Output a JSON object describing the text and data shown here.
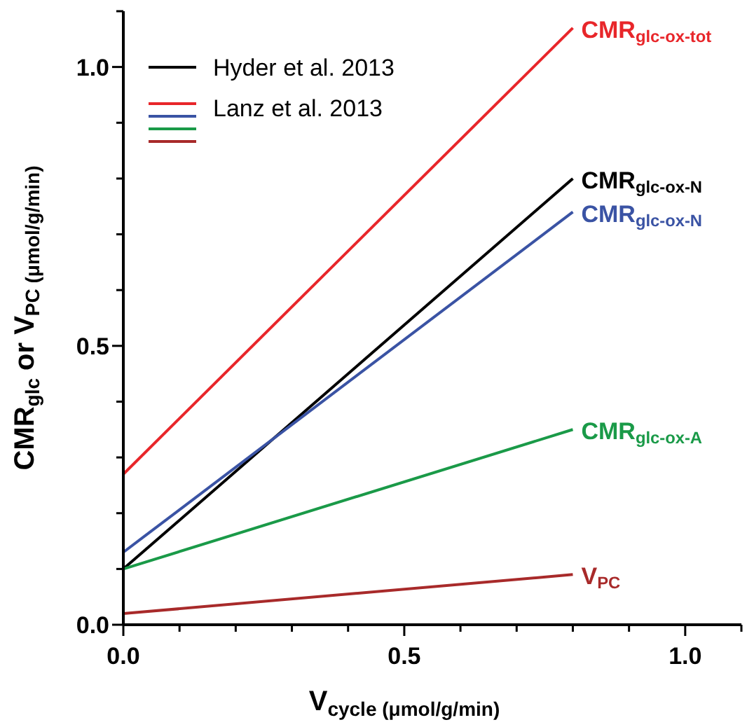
{
  "chart_data": {
    "type": "line",
    "xlabel": "V$_{cycle (μmol/g/min)}$",
    "ylabel": "CMR$_{glc}$ or V$_{PC (μmol/g/min)}$",
    "x": [
      0,
      0.8
    ],
    "series": [
      {
        "name": "CMR$_{glc-ox-tot}$",
        "color": "#e8262a",
        "values": [
          0.27,
          1.07
        ]
      },
      {
        "name": "CMR$_{glc-ox-N}$",
        "color": "#000000",
        "values": [
          0.1,
          0.8
        ]
      },
      {
        "name": "CMR$_{glc-ox-N}$",
        "color": "#3a53a4",
        "values": [
          0.13,
          0.74
        ]
      },
      {
        "name": "CMR$_{glc-ox-A}$",
        "color": "#1a9a48",
        "values": [
          0.1,
          0.35
        ]
      },
      {
        "name": "V$_{PC}$",
        "color": "#a82a2a",
        "values": [
          0.02,
          0.09
        ]
      }
    ],
    "annotations": [
      "Hyder et al. 2013",
      "Lanz et al. 2013"
    ],
    "legend": "right",
    "xlim": [
      0,
      1.1
    ],
    "ylim": [
      0,
      1.1
    ],
    "xticks": [
      {
        "value": 0,
        "label": "0.0"
      },
      {
        "value": 0.1,
        "label": null
      },
      {
        "value": 0.2,
        "label": null
      },
      {
        "value": 0.3,
        "label": null
      },
      {
        "value": 0.4,
        "label": null
      },
      {
        "value": 0.5,
        "label": "0.5"
      },
      {
        "value": 0.6,
        "label": null
      },
      {
        "value": 0.7,
        "label": null
      },
      {
        "value": 0.8,
        "label": null
      },
      {
        "value": 0.9,
        "label": null
      },
      {
        "value": 1,
        "label": "1.0"
      },
      {
        "value": 1.1,
        "label": null
      }
    ],
    "yticks": [
      {
        "value": 0,
        "label": "0.0"
      },
      {
        "value": 0.1,
        "label": null
      },
      {
        "value": 0.2,
        "label": null
      },
      {
        "value": 0.3,
        "label": null
      },
      {
        "value": 0.4,
        "label": null
      },
      {
        "value": 0.5,
        "label": "0.5"
      },
      {
        "value": 0.6,
        "label": null
      },
      {
        "value": 0.7,
        "label": null
      },
      {
        "value": 0.8,
        "label": null
      },
      {
        "value": 0.9,
        "label": null
      },
      {
        "value": 1,
        "label": "1.0"
      },
      {
        "value": 1.1,
        "label": null
      }
    ],
    "grid": false,
    "marker": "none",
    "line_style": "solid"
  }
}
